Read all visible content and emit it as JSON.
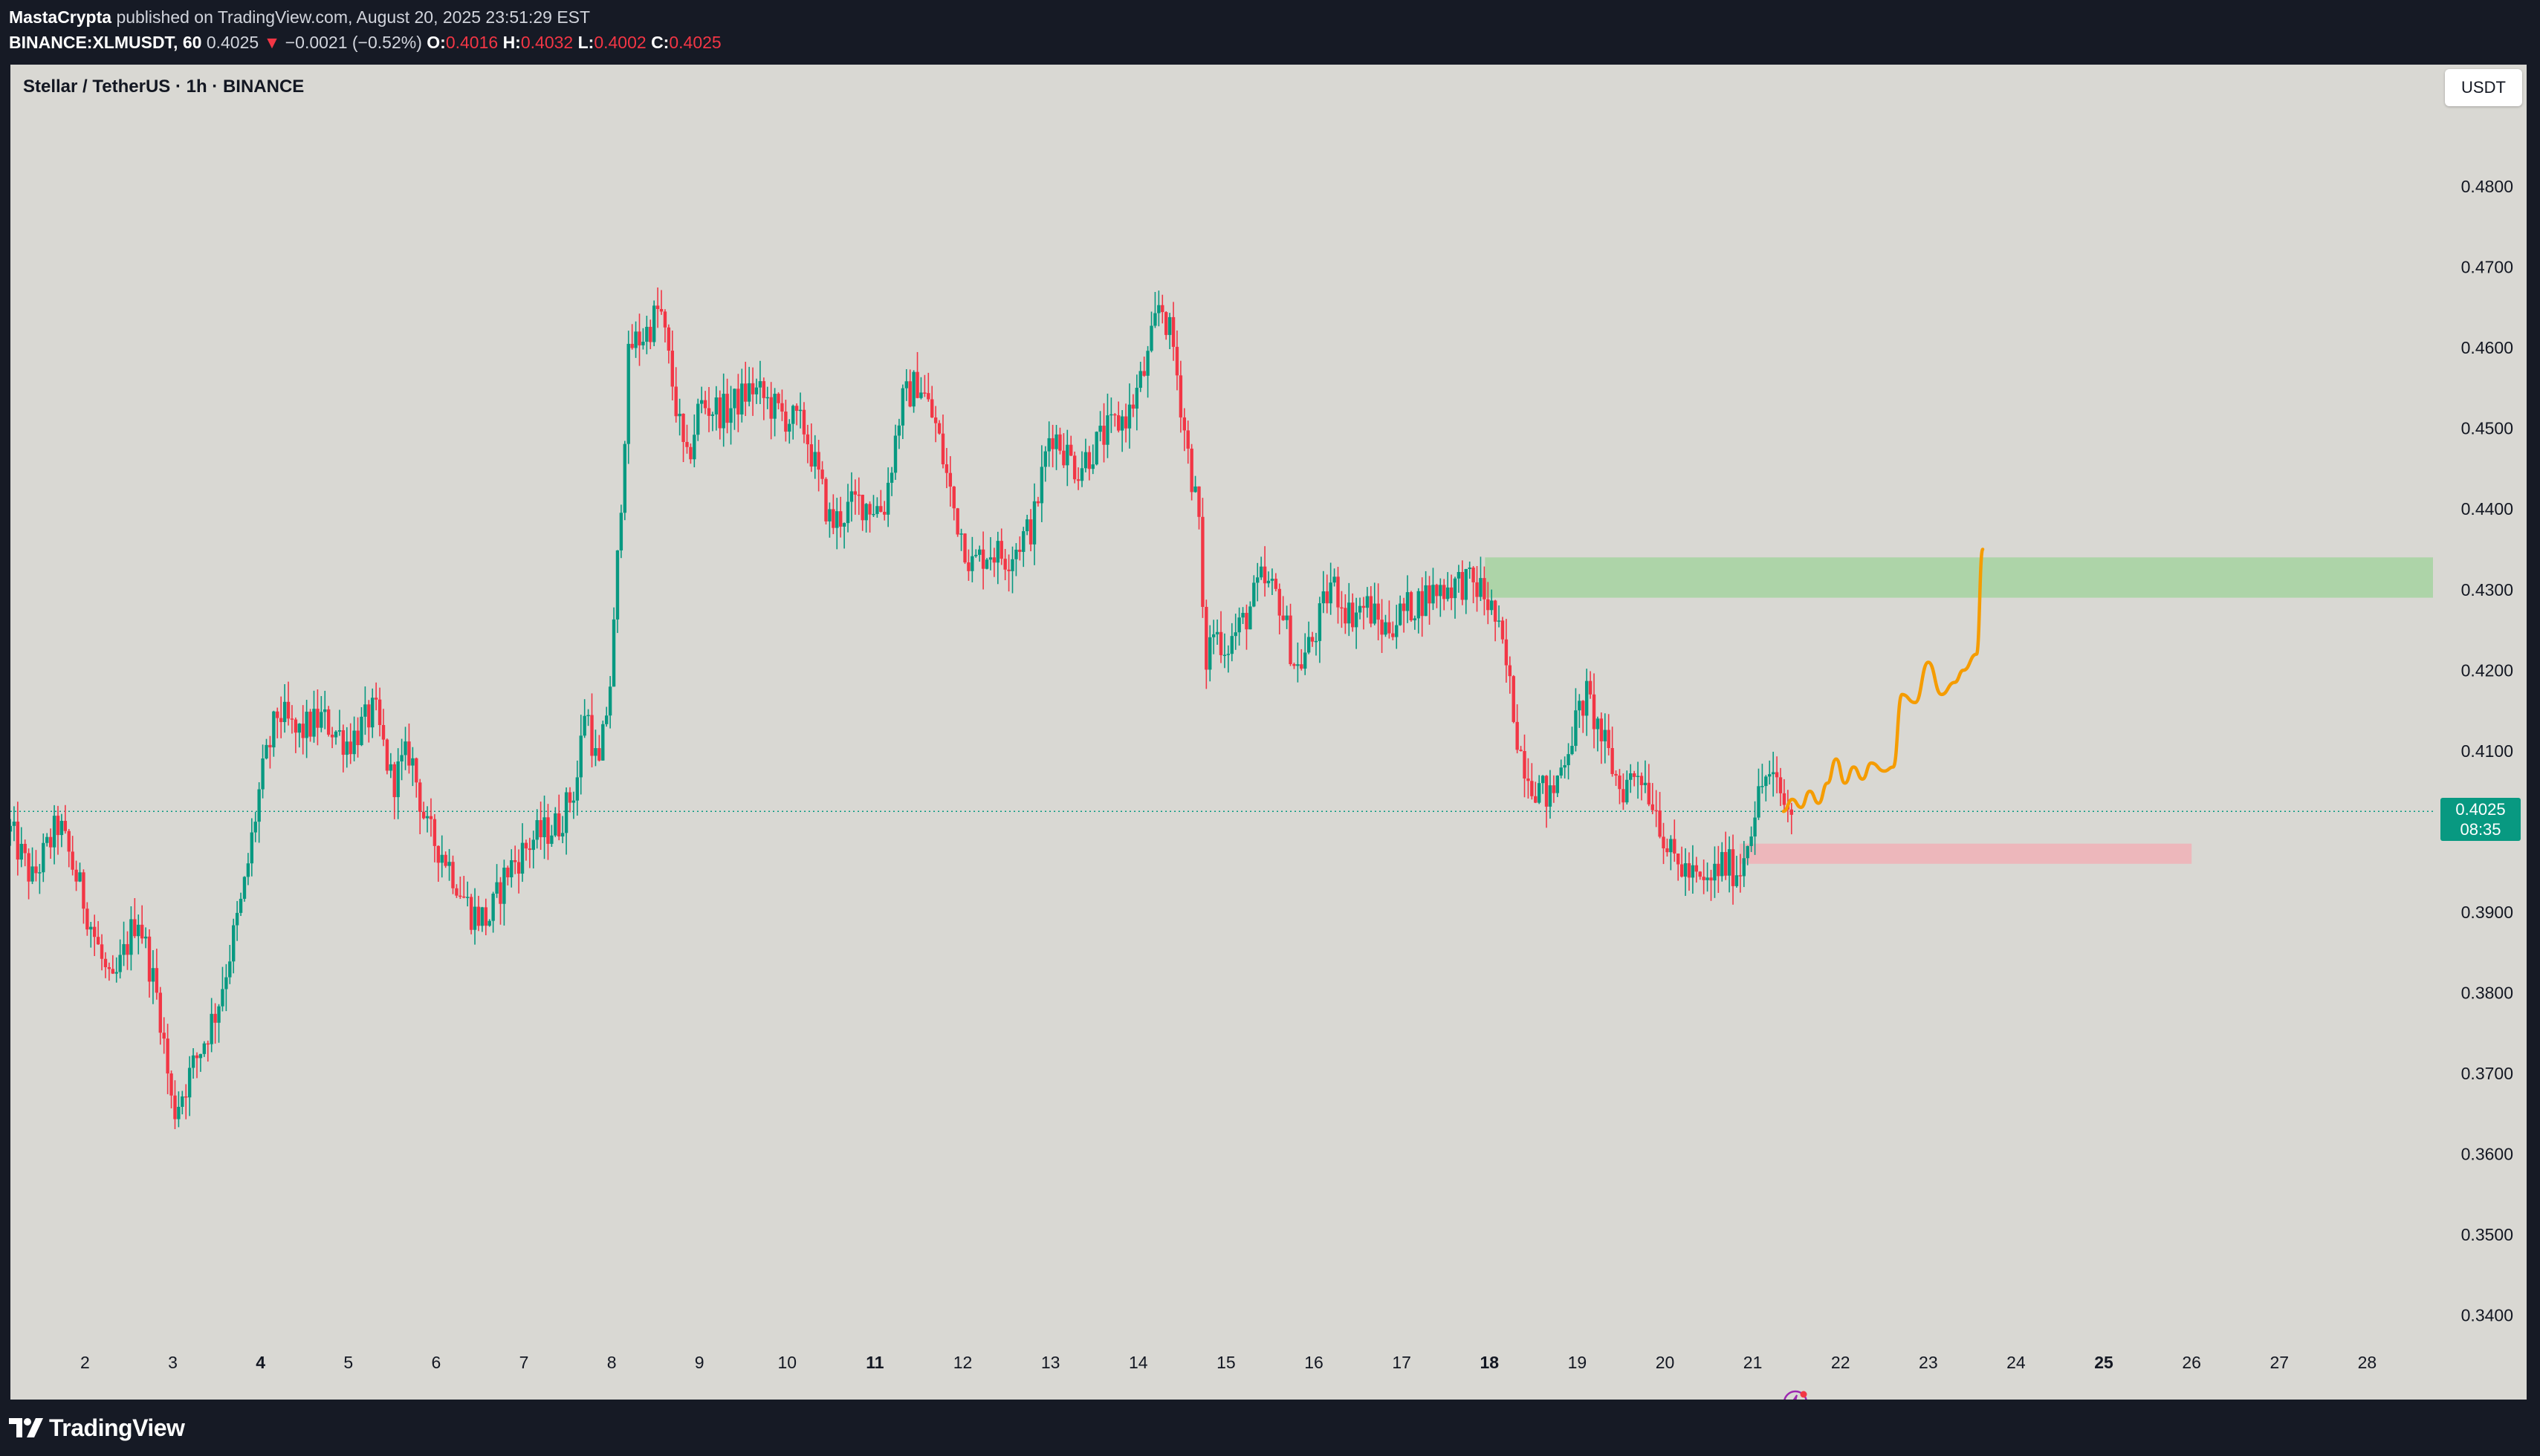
{
  "header": {
    "author": "MastaCrypta",
    "published_text": "published on TradingView.com, August 20, 2025 23:51:29 EST",
    "symbol_line": "BINANCE:XLMUSDT, 60",
    "last": "0.4025",
    "arrow": "▼",
    "change": "−0.0021 (−0.52%)",
    "o_label": "O:",
    "o_value": "0.4016",
    "h_label": "H:",
    "h_value": "0.4032",
    "l_label": "L:",
    "l_value": "0.4002",
    "c_label": "C:",
    "c_value": "0.4025"
  },
  "chart": {
    "title": "Stellar / TetherUS · 1h · BINANCE",
    "currency": "USDT",
    "price_label": "0.4025",
    "countdown": "08:35",
    "footer_logo_text": "TradingView"
  },
  "colors": {
    "up": "#089981",
    "down": "#f23645",
    "background": "#d9d8d3",
    "resistance_zone": "#a5d4a0",
    "support_zone": "#f0b1b6",
    "projection": "#f59c00"
  },
  "icons": [
    "tradingview-logo-icon",
    "lightning-icon"
  ],
  "chart_data": {
    "type": "candlestick",
    "timeframe": "1h",
    "ylim": [
      0.336,
      0.485
    ],
    "y_ticks": [
      "0.4800",
      "0.4700",
      "0.4600",
      "0.4500",
      "0.4400",
      "0.4300",
      "0.4200",
      "0.4100",
      "0.3900",
      "0.3800",
      "0.3700",
      "0.3600",
      "0.3500",
      "0.3400"
    ],
    "x_ticks": [
      {
        "day": 2,
        "label": "2",
        "bold": false
      },
      {
        "day": 3,
        "label": "3",
        "bold": false
      },
      {
        "day": 4,
        "label": "4",
        "bold": true
      },
      {
        "day": 5,
        "label": "5",
        "bold": false
      },
      {
        "day": 6,
        "label": "6",
        "bold": false
      },
      {
        "day": 7,
        "label": "7",
        "bold": false
      },
      {
        "day": 8,
        "label": "8",
        "bold": false
      },
      {
        "day": 9,
        "label": "9",
        "bold": false
      },
      {
        "day": 10,
        "label": "10",
        "bold": false
      },
      {
        "day": 11,
        "label": "11",
        "bold": true
      },
      {
        "day": 12,
        "label": "12",
        "bold": false
      },
      {
        "day": 13,
        "label": "13",
        "bold": false
      },
      {
        "day": 14,
        "label": "14",
        "bold": false
      },
      {
        "day": 15,
        "label": "15",
        "bold": false
      },
      {
        "day": 16,
        "label": "16",
        "bold": false
      },
      {
        "day": 17,
        "label": "17",
        "bold": false
      },
      {
        "day": 18,
        "label": "18",
        "bold": true
      },
      {
        "day": 19,
        "label": "19",
        "bold": false
      },
      {
        "day": 20,
        "label": "20",
        "bold": false
      },
      {
        "day": 21,
        "label": "21",
        "bold": false
      },
      {
        "day": 22,
        "label": "22",
        "bold": false
      },
      {
        "day": 23,
        "label": "23",
        "bold": false
      },
      {
        "day": 24,
        "label": "24",
        "bold": false
      },
      {
        "day": 25,
        "label": "25",
        "bold": true
      },
      {
        "day": 26,
        "label": "26",
        "bold": false
      },
      {
        "day": 27,
        "label": "27",
        "bold": false
      },
      {
        "day": 28,
        "label": "28",
        "bold": false
      }
    ],
    "x_range": [
      1.15,
      28.75
    ],
    "path": [
      [
        1.15,
        0.4
      ],
      [
        1.4,
        0.394
      ],
      [
        1.7,
        0.401
      ],
      [
        2.0,
        0.391
      ],
      [
        2.3,
        0.38
      ],
      [
        2.6,
        0.39
      ],
      [
        2.85,
        0.378
      ],
      [
        3.0,
        0.365
      ],
      [
        3.2,
        0.37
      ],
      [
        3.5,
        0.378
      ],
      [
        3.8,
        0.392
      ],
      [
        4.0,
        0.406
      ],
      [
        4.2,
        0.415
      ],
      [
        4.4,
        0.412
      ],
      [
        4.7,
        0.414
      ],
      [
        5.0,
        0.411
      ],
      [
        5.3,
        0.415
      ],
      [
        5.5,
        0.406
      ],
      [
        5.7,
        0.41
      ],
      [
        5.9,
        0.4
      ],
      [
        6.1,
        0.397
      ],
      [
        6.4,
        0.39
      ],
      [
        6.6,
        0.389
      ],
      [
        6.8,
        0.395
      ],
      [
        7.1,
        0.399
      ],
      [
        7.4,
        0.401
      ],
      [
        7.6,
        0.406
      ],
      [
        7.7,
        0.416
      ],
      [
        7.85,
        0.407
      ],
      [
        8.0,
        0.42
      ],
      [
        8.1,
        0.44
      ],
      [
        8.2,
        0.46
      ],
      [
        8.4,
        0.462
      ],
      [
        8.55,
        0.465
      ],
      [
        8.7,
        0.455
      ],
      [
        8.85,
        0.445
      ],
      [
        9.0,
        0.453
      ],
      [
        9.3,
        0.452
      ],
      [
        9.6,
        0.455
      ],
      [
        9.9,
        0.452
      ],
      [
        10.2,
        0.45
      ],
      [
        10.5,
        0.438
      ],
      [
        10.8,
        0.441
      ],
      [
        11.1,
        0.44
      ],
      [
        11.3,
        0.453
      ],
      [
        11.5,
        0.456
      ],
      [
        11.7,
        0.45
      ],
      [
        11.9,
        0.44
      ],
      [
        12.1,
        0.433
      ],
      [
        12.3,
        0.435
      ],
      [
        12.5,
        0.434
      ],
      [
        12.8,
        0.438
      ],
      [
        13.0,
        0.45
      ],
      [
        13.3,
        0.445
      ],
      [
        13.6,
        0.449
      ],
      [
        13.9,
        0.452
      ],
      [
        14.1,
        0.458
      ],
      [
        14.25,
        0.466
      ],
      [
        14.4,
        0.46
      ],
      [
        14.55,
        0.448
      ],
      [
        14.7,
        0.438
      ],
      [
        14.75,
        0.42
      ],
      [
        14.85,
        0.425
      ],
      [
        15.0,
        0.423
      ],
      [
        15.2,
        0.426
      ],
      [
        15.4,
        0.431
      ],
      [
        15.6,
        0.429
      ],
      [
        15.8,
        0.42
      ],
      [
        16.0,
        0.424
      ],
      [
        16.2,
        0.431
      ],
      [
        16.4,
        0.427
      ],
      [
        16.6,
        0.428
      ],
      [
        16.8,
        0.425
      ],
      [
        17.1,
        0.428
      ],
      [
        17.4,
        0.43
      ],
      [
        17.7,
        0.431
      ],
      [
        17.9,
        0.43
      ],
      [
        18.05,
        0.427
      ],
      [
        18.2,
        0.42
      ],
      [
        18.35,
        0.41
      ],
      [
        18.5,
        0.406
      ],
      [
        18.7,
        0.404
      ],
      [
        18.9,
        0.411
      ],
      [
        19.1,
        0.417
      ],
      [
        19.3,
        0.411
      ],
      [
        19.5,
        0.405
      ],
      [
        19.7,
        0.408
      ],
      [
        19.9,
        0.403
      ],
      [
        20.05,
        0.397
      ],
      [
        20.25,
        0.395
      ],
      [
        20.45,
        0.393
      ],
      [
        20.65,
        0.396
      ],
      [
        20.85,
        0.395
      ],
      [
        21.0,
        0.402
      ],
      [
        21.15,
        0.407
      ],
      [
        21.3,
        0.405
      ],
      [
        21.4,
        0.4025
      ]
    ],
    "zones": [
      {
        "name": "resistance",
        "from_day": 17.95,
        "to_day": 28.75,
        "top": 0.434,
        "bottom": 0.429
      },
      {
        "name": "support",
        "from_day": 20.85,
        "to_day": 26.0,
        "top": 0.3985,
        "bottom": 0.396
      }
    ],
    "projection": [
      [
        21.35,
        0.4025
      ],
      [
        21.45,
        0.404
      ],
      [
        21.55,
        0.403
      ],
      [
        21.65,
        0.405
      ],
      [
        21.75,
        0.4035
      ],
      [
        21.85,
        0.406
      ],
      [
        21.95,
        0.409
      ],
      [
        22.05,
        0.406
      ],
      [
        22.15,
        0.408
      ],
      [
        22.25,
        0.4065
      ],
      [
        22.35,
        0.4085
      ],
      [
        22.5,
        0.4075
      ],
      [
        22.6,
        0.408
      ],
      [
        22.7,
        0.417
      ],
      [
        22.85,
        0.416
      ],
      [
        23.0,
        0.421
      ],
      [
        23.15,
        0.417
      ],
      [
        23.3,
        0.4185
      ],
      [
        23.4,
        0.42
      ],
      [
        23.55,
        0.422
      ],
      [
        23.62,
        0.435
      ]
    ],
    "current_price": 0.4025,
    "last_candle_day": 21.45
  }
}
